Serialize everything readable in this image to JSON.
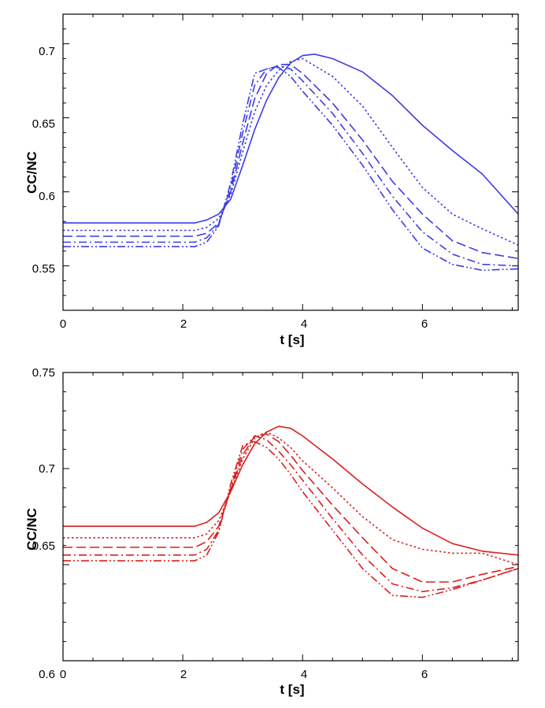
{
  "chart_data": [
    {
      "type": "line",
      "color": "#3c3ce6",
      "xlabel": "t [s]",
      "ylabel": "CC/NC",
      "xlim": [
        0,
        7.6
      ],
      "ylim": [
        0.52,
        0.72
      ],
      "xticks": [
        0,
        2,
        4,
        6
      ],
      "xtick_labels": [
        "0",
        "2",
        "4",
        "6"
      ],
      "yticks": [
        0.55,
        0.6,
        0.65,
        0.7
      ],
      "ytick_labels": [
        "0.55",
        "0.6",
        "0.65",
        "0.7"
      ],
      "grid": false,
      "series": [
        {
          "name": "solid",
          "dash": "solid",
          "x": [
            0,
            1,
            2.2,
            2.4,
            2.6,
            2.8,
            3.0,
            3.2,
            3.4,
            3.6,
            3.8,
            4.0,
            4.2,
            4.5,
            5.0,
            5.5,
            6.0,
            6.5,
            7.0,
            7.6
          ],
          "y": [
            0.579,
            0.579,
            0.579,
            0.581,
            0.585,
            0.595,
            0.618,
            0.642,
            0.662,
            0.677,
            0.687,
            0.692,
            0.693,
            0.69,
            0.681,
            0.665,
            0.645,
            0.628,
            0.612,
            0.585
          ]
        },
        {
          "name": "dotted",
          "dash": "dotted",
          "x": [
            0,
            1,
            2.2,
            2.4,
            2.6,
            2.8,
            3.0,
            3.2,
            3.4,
            3.6,
            3.8,
            4.0,
            4.5,
            5.0,
            5.5,
            6.0,
            6.5,
            7.0,
            7.6
          ],
          "y": [
            0.574,
            0.574,
            0.574,
            0.576,
            0.582,
            0.598,
            0.627,
            0.654,
            0.672,
            0.682,
            0.688,
            0.69,
            0.678,
            0.658,
            0.63,
            0.603,
            0.585,
            0.575,
            0.564
          ]
        },
        {
          "name": "dashed",
          "dash": "dashed",
          "x": [
            0,
            1,
            2.2,
            2.4,
            2.6,
            2.8,
            3.0,
            3.2,
            3.4,
            3.6,
            3.8,
            4.0,
            4.5,
            5.0,
            5.5,
            6.0,
            6.5,
            7.0,
            7.6
          ],
          "y": [
            0.57,
            0.57,
            0.57,
            0.572,
            0.579,
            0.6,
            0.633,
            0.663,
            0.68,
            0.686,
            0.686,
            0.68,
            0.66,
            0.635,
            0.607,
            0.585,
            0.567,
            0.559,
            0.555
          ]
        },
        {
          "name": "dash-dot",
          "dash": "dashdot",
          "x": [
            0,
            1,
            2.2,
            2.4,
            2.6,
            2.8,
            3.0,
            3.2,
            3.4,
            3.6,
            3.8,
            4.0,
            4.5,
            5.0,
            5.5,
            6.0,
            6.5,
            7.0,
            7.6
          ],
          "y": [
            0.566,
            0.566,
            0.566,
            0.569,
            0.578,
            0.603,
            0.64,
            0.672,
            0.683,
            0.685,
            0.683,
            0.675,
            0.653,
            0.626,
            0.597,
            0.573,
            0.558,
            0.551,
            0.55
          ]
        },
        {
          "name": "dash-dot-dot",
          "dash": "dashdotdot",
          "x": [
            0,
            1,
            2.2,
            2.4,
            2.6,
            2.8,
            3.0,
            3.2,
            3.4,
            3.6,
            3.8,
            4.0,
            4.5,
            5.0,
            5.5,
            6.0,
            6.5,
            7.0,
            7.6
          ],
          "y": [
            0.563,
            0.563,
            0.563,
            0.566,
            0.577,
            0.606,
            0.646,
            0.68,
            0.683,
            0.684,
            0.678,
            0.668,
            0.645,
            0.618,
            0.588,
            0.562,
            0.551,
            0.547,
            0.548
          ]
        }
      ]
    },
    {
      "type": "line",
      "color": "#dc1e1e",
      "xlabel": "t [s]",
      "ylabel": "CC/NC",
      "xlim": [
        0,
        7.6
      ],
      "ylim": [
        0.6,
        0.75
      ],
      "xticks": [
        0,
        2,
        4,
        6
      ],
      "xtick_labels": [
        "0",
        "2",
        "4",
        "6"
      ],
      "yticks": [
        0.6,
        0.65,
        0.7,
        0.75
      ],
      "ytick_labels": [
        "0.6",
        "0.65",
        "0.7",
        "0.75"
      ],
      "grid": false,
      "series": [
        {
          "name": "solid",
          "dash": "solid",
          "x": [
            0,
            1,
            2.2,
            2.4,
            2.6,
            2.8,
            3.0,
            3.2,
            3.4,
            3.6,
            3.8,
            4.0,
            4.5,
            5.0,
            5.5,
            6.0,
            6.5,
            7.0,
            7.6
          ],
          "y": [
            0.67,
            0.67,
            0.67,
            0.672,
            0.677,
            0.688,
            0.702,
            0.713,
            0.719,
            0.722,
            0.721,
            0.717,
            0.705,
            0.692,
            0.68,
            0.669,
            0.661,
            0.657,
            0.655
          ]
        },
        {
          "name": "dotted",
          "dash": "dotted",
          "x": [
            0,
            1,
            2.2,
            2.4,
            2.6,
            2.8,
            3.0,
            3.2,
            3.4,
            3.6,
            3.8,
            4.0,
            4.5,
            5.0,
            5.5,
            6.0,
            6.5,
            7.0,
            7.6
          ],
          "y": [
            0.664,
            0.664,
            0.664,
            0.666,
            0.673,
            0.688,
            0.705,
            0.716,
            0.719,
            0.716,
            0.711,
            0.704,
            0.69,
            0.675,
            0.663,
            0.658,
            0.656,
            0.656,
            0.65
          ]
        },
        {
          "name": "dashed",
          "dash": "dashed",
          "x": [
            0,
            1,
            2.2,
            2.4,
            2.6,
            2.8,
            3.0,
            3.2,
            3.4,
            3.6,
            3.8,
            4.0,
            4.5,
            5.0,
            5.5,
            6.0,
            6.5,
            7.0,
            7.6
          ],
          "y": [
            0.659,
            0.659,
            0.659,
            0.662,
            0.67,
            0.689,
            0.707,
            0.717,
            0.718,
            0.714,
            0.707,
            0.699,
            0.681,
            0.664,
            0.648,
            0.641,
            0.641,
            0.645,
            0.649
          ]
        },
        {
          "name": "dash-dot",
          "dash": "dashdot",
          "x": [
            0,
            1,
            2.2,
            2.4,
            2.6,
            2.8,
            3.0,
            3.2,
            3.4,
            3.6,
            3.8,
            4.0,
            4.5,
            5.0,
            5.5,
            6.0,
            6.5,
            7.0,
            7.6
          ],
          "y": [
            0.655,
            0.655,
            0.655,
            0.658,
            0.668,
            0.69,
            0.71,
            0.717,
            0.715,
            0.709,
            0.702,
            0.694,
            0.674,
            0.655,
            0.64,
            0.636,
            0.638,
            0.642,
            0.648
          ]
        },
        {
          "name": "dash-dot-dot",
          "dash": "dashdotdot",
          "x": [
            0,
            1,
            2.2,
            2.4,
            2.6,
            2.8,
            3.0,
            3.2,
            3.4,
            3.6,
            3.8,
            4.0,
            4.5,
            5.0,
            5.5,
            6.0,
            6.5,
            7.0,
            7.6
          ],
          "y": [
            0.652,
            0.652,
            0.652,
            0.655,
            0.667,
            0.692,
            0.712,
            0.714,
            0.711,
            0.705,
            0.697,
            0.688,
            0.668,
            0.648,
            0.634,
            0.633,
            0.637,
            0.642,
            0.648
          ]
        }
      ]
    }
  ]
}
